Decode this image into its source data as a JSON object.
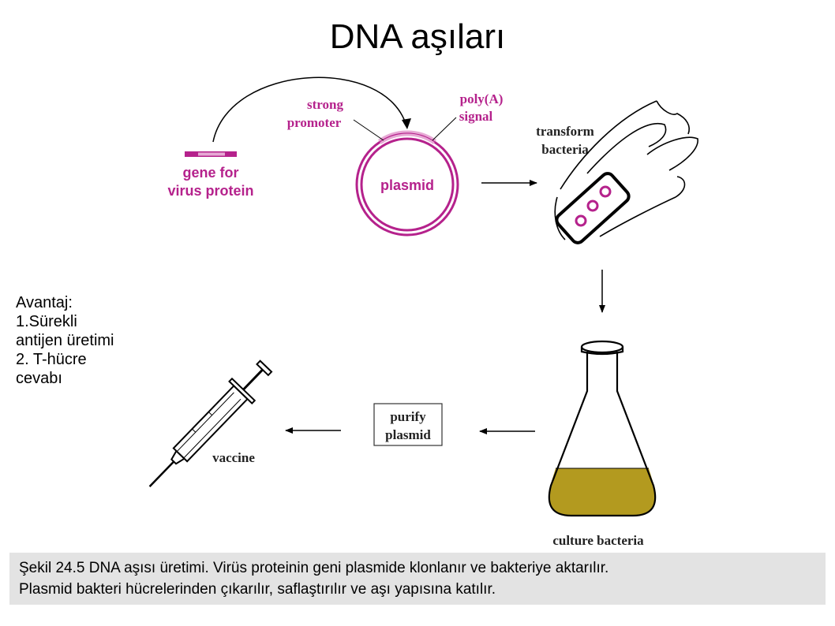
{
  "title": "DNA aşıları",
  "colors": {
    "magenta": "#b5228c",
    "magenta_light": "#e7a9d5",
    "culture_liquid": "#b39a1f",
    "caption_bg": "#e3e3e3"
  },
  "diagram": {
    "gene_label_line1": "gene for",
    "gene_label_line2": "virus protein",
    "strong_promoter_line1": "strong",
    "strong_promoter_line2": "promoter",
    "polya_line1": "poly(A)",
    "polya_line2": "signal",
    "plasmid_label": "plasmid",
    "transform_line1": "transform",
    "transform_line2": "bacteria",
    "culture_label": "culture bacteria",
    "purify_line1": "purify",
    "purify_line2": "plasmid",
    "vaccine_label": "vaccine"
  },
  "advantages": {
    "heading": "Avantaj:",
    "line1": "1.Sürekli",
    "line2": "antijen üretimi",
    "line3": "2. T-hücre",
    "line4": "cevabı"
  },
  "caption": {
    "line1": "Şekil 24.5 DNA aşısı üretimi. Virüs proteinin geni plasmide klonlanır ve bakteriye aktarılır.",
    "line2": "Plasmid bakteri hücrelerinden çıkarılır, saflaştırılır ve aşı yapısına katılır."
  }
}
